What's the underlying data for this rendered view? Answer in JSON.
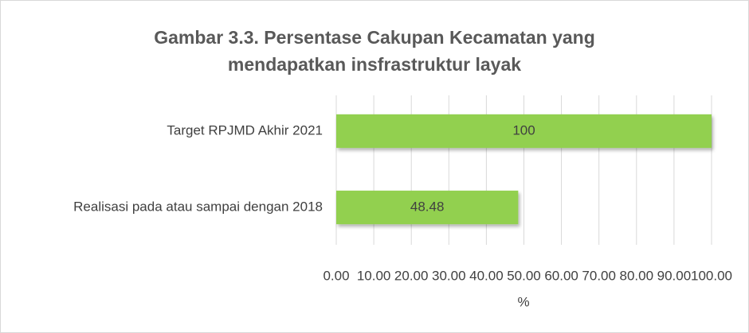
{
  "chart_data": {
    "type": "bar",
    "orientation": "horizontal",
    "title": "Gambar 3.3. Persentase Cakupan Kecamatan yang mendapatkan insfrastruktur layak",
    "categories": [
      "Target RPJMD Akhir 2021",
      "Realisasi pada atau sampai dengan 2018"
    ],
    "values": [
      100,
      48.48
    ],
    "color": "#92d050",
    "xlabel": "%",
    "xlim": [
      0,
      100
    ],
    "xticks": [
      {
        "value": 0,
        "label": "0.00"
      },
      {
        "value": 10,
        "label": "10.00"
      },
      {
        "value": 20,
        "label": "20.00"
      },
      {
        "value": 30,
        "label": "30.00"
      },
      {
        "value": 40,
        "label": "40.00"
      },
      {
        "value": 50,
        "label": "50.00"
      },
      {
        "value": 60,
        "label": "60.00"
      },
      {
        "value": 70,
        "label": "70.00"
      },
      {
        "value": 80,
        "label": "80.00"
      },
      {
        "value": 90,
        "label": "90.00"
      },
      {
        "value": 100,
        "label": "100.00"
      }
    ],
    "grid": true
  }
}
